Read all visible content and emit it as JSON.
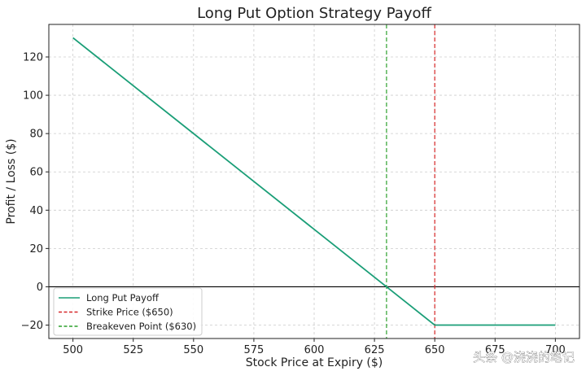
{
  "chart_data": {
    "type": "line",
    "title": "Long Put Option Strategy Payoff",
    "xlabel": "Stock Price at Expiry ($)",
    "ylabel": "Profit / Loss ($)",
    "xlim": [
      490,
      710
    ],
    "ylim": [
      -27,
      137
    ],
    "xticks": [
      500,
      525,
      550,
      575,
      600,
      625,
      650,
      675,
      700
    ],
    "yticks": [
      -20,
      0,
      20,
      40,
      60,
      80,
      100,
      120
    ],
    "ytick_labels": [
      "−20",
      "0",
      "20",
      "40",
      "60",
      "80",
      "100",
      "120"
    ],
    "grid": true,
    "legend_position": "lower-left",
    "series": [
      {
        "name": "Long Put Payoff",
        "color": "#1a9e77",
        "style": "solid",
        "x": [
          500,
          650,
          700
        ],
        "y": [
          130,
          -20,
          -20
        ]
      }
    ],
    "vlines": [
      {
        "name": "Strike Price ($650)",
        "x": 650,
        "color": "#d62728",
        "style": "dashed"
      },
      {
        "name": "Breakeven Point ($630)",
        "x": 630,
        "color": "#2ca02c",
        "style": "dashed"
      }
    ],
    "hlines": [
      {
        "y": 0,
        "color": "#000000",
        "style": "solid"
      }
    ]
  },
  "watermark": "头条 @浇浇的笔记"
}
